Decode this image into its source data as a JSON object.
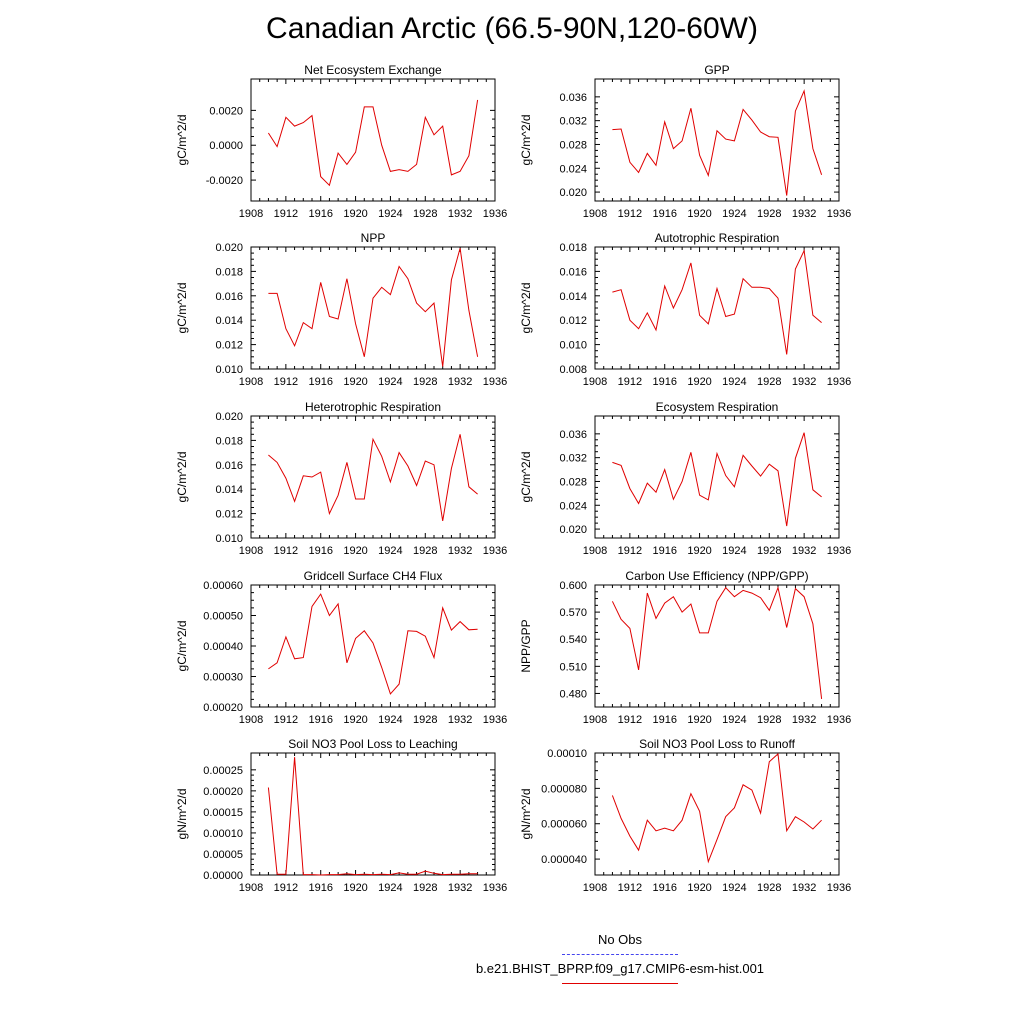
{
  "title": "Canadian Arctic (66.5-90N,120-60W)",
  "colors": {
    "series": "#e00000",
    "obs": "#4444ee",
    "axis": "#000000"
  },
  "legend": [
    {
      "label": "No Obs",
      "style": "dashed",
      "color": "#4444ee"
    },
    {
      "label": "b.e21.BHIST_BPRP.f09_g17.CMIP6-esm-hist.001",
      "style": "solid",
      "color": "#e00000"
    }
  ],
  "chart_data": [
    {
      "type": "line",
      "title": "Net Ecosystem Exchange",
      "ylabel": "gC/m^2/d",
      "xlim": [
        1908,
        1936
      ],
      "xticks": [
        "1908",
        "1912",
        "1916",
        "1920",
        "1924",
        "1928",
        "1932",
        "1936"
      ],
      "ylim": [
        -0.0032,
        0.0038
      ],
      "yticks": [
        "-0.0020",
        "0.0000",
        "0.0020"
      ],
      "ytick_values": [
        -0.002,
        0.0,
        0.002
      ],
      "x": [
        1910,
        1911,
        1912,
        1913,
        1914,
        1915,
        1916,
        1917,
        1918,
        1919,
        1920,
        1921,
        1922,
        1923,
        1924,
        1925,
        1926,
        1927,
        1928,
        1929,
        1930,
        1931,
        1932,
        1933,
        1934
      ],
      "series": [
        {
          "values": [
            0.0007,
            -8e-05,
            0.0016,
            0.0011,
            0.0013,
            0.0017,
            -0.0018,
            -0.0023,
            -0.00045,
            -0.0011,
            -0.0004,
            0.0022,
            0.0022,
            0.0,
            -0.0015,
            -0.0014,
            -0.0015,
            -0.0011,
            0.0016,
            0.0006,
            0.0011,
            -0.0017,
            -0.0015,
            -0.0006,
            0.0026
          ]
        }
      ]
    },
    {
      "type": "line",
      "title": "GPP",
      "ylabel": "gC/m^2/d",
      "xlim": [
        1908,
        1936
      ],
      "xticks": [
        "1908",
        "1912",
        "1916",
        "1920",
        "1924",
        "1928",
        "1932",
        "1936"
      ],
      "ylim": [
        0.0185,
        0.039
      ],
      "yticks": [
        "0.020",
        "0.024",
        "0.028",
        "0.032",
        "0.036"
      ],
      "ytick_values": [
        0.02,
        0.024,
        0.028,
        0.032,
        0.036
      ],
      "x": [
        1910,
        1911,
        1912,
        1913,
        1914,
        1915,
        1916,
        1917,
        1918,
        1919,
        1920,
        1921,
        1922,
        1923,
        1924,
        1925,
        1926,
        1927,
        1928,
        1929,
        1930,
        1931,
        1932,
        1933,
        1934
      ],
      "series": [
        {
          "values": [
            0.0305,
            0.0306,
            0.025,
            0.0233,
            0.0265,
            0.0245,
            0.0318,
            0.0273,
            0.0286,
            0.0341,
            0.0262,
            0.0228,
            0.0303,
            0.0289,
            0.0286,
            0.0339,
            0.0321,
            0.0301,
            0.0293,
            0.0292,
            0.0194,
            0.0336,
            0.037,
            0.0273,
            0.0229
          ]
        }
      ]
    },
    {
      "type": "line",
      "title": "NPP",
      "ylabel": "gC/m^2/d",
      "xlim": [
        1908,
        1936
      ],
      "xticks": [
        "1908",
        "1912",
        "1916",
        "1920",
        "1924",
        "1928",
        "1932",
        "1936"
      ],
      "ylim": [
        0.01,
        0.02
      ],
      "yticks": [
        "0.010",
        "0.012",
        "0.014",
        "0.016",
        "0.018",
        "0.020"
      ],
      "ytick_values": [
        0.01,
        0.012,
        0.014,
        0.016,
        0.018,
        0.02
      ],
      "x": [
        1910,
        1911,
        1912,
        1913,
        1914,
        1915,
        1916,
        1917,
        1918,
        1919,
        1920,
        1921,
        1922,
        1923,
        1924,
        1925,
        1926,
        1927,
        1928,
        1929,
        1930,
        1931,
        1932,
        1933,
        1934
      ],
      "series": [
        {
          "values": [
            0.0162,
            0.0162,
            0.0133,
            0.0119,
            0.0138,
            0.0133,
            0.0171,
            0.0143,
            0.0141,
            0.0174,
            0.0137,
            0.011,
            0.0158,
            0.0167,
            0.0161,
            0.0184,
            0.0174,
            0.0154,
            0.0147,
            0.0154,
            0.0102,
            0.0173,
            0.0199,
            0.0148,
            0.011
          ]
        }
      ]
    },
    {
      "type": "line",
      "title": "Autotrophic Respiration",
      "ylabel": "gC/m^2/d",
      "xlim": [
        1908,
        1936
      ],
      "xticks": [
        "1908",
        "1912",
        "1916",
        "1920",
        "1924",
        "1928",
        "1932",
        "1936"
      ],
      "ylim": [
        0.008,
        0.018
      ],
      "yticks": [
        "0.008",
        "0.010",
        "0.012",
        "0.014",
        "0.016",
        "0.018"
      ],
      "ytick_values": [
        0.008,
        0.01,
        0.012,
        0.014,
        0.016,
        0.018
      ],
      "x": [
        1910,
        1911,
        1912,
        1913,
        1914,
        1915,
        1916,
        1917,
        1918,
        1919,
        1920,
        1921,
        1922,
        1923,
        1924,
        1925,
        1926,
        1927,
        1928,
        1929,
        1930,
        1931,
        1932,
        1933,
        1934
      ],
      "series": [
        {
          "values": [
            0.0143,
            0.0145,
            0.012,
            0.0113,
            0.0126,
            0.0112,
            0.0148,
            0.013,
            0.0145,
            0.0167,
            0.0124,
            0.0117,
            0.0146,
            0.0123,
            0.0125,
            0.0154,
            0.0147,
            0.0147,
            0.0146,
            0.0138,
            0.0092,
            0.0162,
            0.0177,
            0.0124,
            0.0118
          ]
        }
      ]
    },
    {
      "type": "line",
      "title": "Heterotrophic Respiration",
      "ylabel": "gC/m^2/d",
      "xlim": [
        1908,
        1936
      ],
      "xticks": [
        "1908",
        "1912",
        "1916",
        "1920",
        "1924",
        "1928",
        "1932",
        "1936"
      ],
      "ylim": [
        0.01,
        0.02
      ],
      "yticks": [
        "0.010",
        "0.012",
        "0.014",
        "0.016",
        "0.018",
        "0.020"
      ],
      "ytick_values": [
        0.01,
        0.012,
        0.014,
        0.016,
        0.018,
        0.02
      ],
      "x": [
        1910,
        1911,
        1912,
        1913,
        1914,
        1915,
        1916,
        1917,
        1918,
        1919,
        1920,
        1921,
        1922,
        1923,
        1924,
        1925,
        1926,
        1927,
        1928,
        1929,
        1930,
        1931,
        1932,
        1933,
        1934
      ],
      "series": [
        {
          "values": [
            0.0168,
            0.0162,
            0.0149,
            0.013,
            0.0151,
            0.015,
            0.0154,
            0.012,
            0.0135,
            0.0162,
            0.0132,
            0.0132,
            0.0181,
            0.0167,
            0.0146,
            0.017,
            0.0159,
            0.0143,
            0.0163,
            0.016,
            0.0114,
            0.0157,
            0.0185,
            0.0142,
            0.0136
          ]
        }
      ]
    },
    {
      "type": "line",
      "title": "Ecosystem Respiration",
      "ylabel": "gC/m^2/d",
      "xlim": [
        1908,
        1936
      ],
      "xticks": [
        "1908",
        "1912",
        "1916",
        "1920",
        "1924",
        "1928",
        "1932",
        "1936"
      ],
      "ylim": [
        0.0185,
        0.039
      ],
      "yticks": [
        "0.020",
        "0.024",
        "0.028",
        "0.032",
        "0.036"
      ],
      "ytick_values": [
        0.02,
        0.024,
        0.028,
        0.032,
        0.036
      ],
      "x": [
        1910,
        1911,
        1912,
        1913,
        1914,
        1915,
        1916,
        1917,
        1918,
        1919,
        1920,
        1921,
        1922,
        1923,
        1924,
        1925,
        1926,
        1927,
        1928,
        1929,
        1930,
        1931,
        1932,
        1933,
        1934
      ],
      "series": [
        {
          "values": [
            0.0312,
            0.0307,
            0.0268,
            0.0243,
            0.0277,
            0.0262,
            0.03,
            0.025,
            0.028,
            0.0329,
            0.0257,
            0.0249,
            0.0327,
            0.029,
            0.0271,
            0.0324,
            0.0306,
            0.0289,
            0.0309,
            0.0298,
            0.0205,
            0.0319,
            0.0362,
            0.0266,
            0.0254
          ]
        }
      ]
    },
    {
      "type": "line",
      "title": "Gridcell Surface CH4 Flux",
      "ylabel": "gC/m^2/d",
      "xlim": [
        1908,
        1936
      ],
      "xticks": [
        "1908",
        "1912",
        "1916",
        "1920",
        "1924",
        "1928",
        "1932",
        "1936"
      ],
      "ylim": [
        0.0002,
        0.0006
      ],
      "yticks": [
        "0.00020",
        "0.00030",
        "0.00040",
        "0.00050",
        "0.00060"
      ],
      "ytick_values": [
        0.0002,
        0.0003,
        0.0004,
        0.0005,
        0.0006
      ],
      "x": [
        1910,
        1911,
        1912,
        1913,
        1914,
        1915,
        1916,
        1917,
        1918,
        1919,
        1920,
        1921,
        1922,
        1923,
        1924,
        1925,
        1926,
        1927,
        1928,
        1929,
        1930,
        1931,
        1932,
        1933,
        1934
      ],
      "series": [
        {
          "values": [
            0.000325,
            0.000345,
            0.00043,
            0.000358,
            0.000362,
            0.00053,
            0.00057,
            0.0005,
            0.000538,
            0.000345,
            0.000425,
            0.00045,
            0.00041,
            0.00033,
            0.000243,
            0.000275,
            0.00045,
            0.000448,
            0.000432,
            0.000362,
            0.000525,
            0.000452,
            0.00048,
            0.000453,
            0.000455
          ]
        }
      ]
    },
    {
      "type": "line",
      "title": "Carbon Use Efficiency (NPP/GPP)",
      "ylabel": "NPP/GPP",
      "xlim": [
        1908,
        1936
      ],
      "xticks": [
        "1908",
        "1912",
        "1916",
        "1920",
        "1924",
        "1928",
        "1932",
        "1936"
      ],
      "ylim": [
        0.465,
        0.6
      ],
      "yticks": [
        "0.480",
        "0.510",
        "0.540",
        "0.570",
        "0.600"
      ],
      "ytick_values": [
        0.48,
        0.51,
        0.54,
        0.57,
        0.6
      ],
      "x": [
        1910,
        1911,
        1912,
        1913,
        1914,
        1915,
        1916,
        1917,
        1918,
        1919,
        1920,
        1921,
        1922,
        1923,
        1924,
        1925,
        1926,
        1927,
        1928,
        1929,
        1930,
        1931,
        1932,
        1933,
        1934
      ],
      "series": [
        {
          "values": [
            0.582,
            0.562,
            0.552,
            0.506,
            0.591,
            0.563,
            0.58,
            0.587,
            0.57,
            0.579,
            0.547,
            0.547,
            0.582,
            0.597,
            0.587,
            0.594,
            0.591,
            0.586,
            0.572,
            0.597,
            0.553,
            0.596,
            0.587,
            0.557,
            0.474
          ]
        }
      ]
    },
    {
      "type": "line",
      "title": "Soil NO3 Pool Loss to Leaching",
      "ylabel": "gN/m^2/d",
      "xlim": [
        1908,
        1936
      ],
      "xticks": [
        "1908",
        "1912",
        "1916",
        "1920",
        "1924",
        "1928",
        "1932",
        "1936"
      ],
      "ylim": [
        0.0,
        0.00029
      ],
      "yticks": [
        "0.00000",
        "0.00005",
        "0.00010",
        "0.00015",
        "0.00020",
        "0.00025"
      ],
      "ytick_values": [
        0.0,
        5e-05,
        0.0001,
        0.00015,
        0.0002,
        0.00025
      ],
      "x": [
        1910,
        1911,
        1912,
        1913,
        1914,
        1915,
        1916,
        1917,
        1918,
        1919,
        1920,
        1921,
        1922,
        1923,
        1924,
        1925,
        1926,
        1927,
        1928,
        1929,
        1930,
        1931,
        1932,
        1933,
        1934
      ],
      "series": [
        {
          "values": [
            0.000208,
            2e-06,
            2e-06,
            0.00028,
            1e-06,
            1e-06,
            0.0,
            1e-06,
            1e-06,
            3e-06,
            1e-06,
            2e-06,
            1e-06,
            2e-06,
            1e-06,
            5e-06,
            2e-06,
            2e-06,
            9e-06,
            4e-06,
            1e-06,
            2e-06,
            2e-06,
            3e-06,
            3e-06
          ]
        }
      ]
    },
    {
      "type": "line",
      "title": "Soil NO3 Pool Loss to Runoff",
      "ylabel": "gN/m^2/d",
      "xlim": [
        1908,
        1936
      ],
      "xticks": [
        "1908",
        "1912",
        "1916",
        "1920",
        "1924",
        "1928",
        "1932",
        "1936"
      ],
      "ylim": [
        3.1e-05,
        0.0001
      ],
      "yticks": [
        "0.000040",
        "0.000060",
        "0.000080",
        "0.00010"
      ],
      "ytick_values": [
        4e-05,
        6e-05,
        8e-05,
        0.0001
      ],
      "x": [
        1910,
        1911,
        1912,
        1913,
        1914,
        1915,
        1916,
        1917,
        1918,
        1919,
        1920,
        1921,
        1922,
        1923,
        1924,
        1925,
        1926,
        1927,
        1928,
        1929,
        1930,
        1931,
        1932,
        1933,
        1934
      ],
      "series": [
        {
          "values": [
            7.6e-05,
            6.3e-05,
            5.3e-05,
            4.5e-05,
            6.2e-05,
            5.6e-05,
            5.75e-05,
            5.6e-05,
            6.2e-05,
            7.7e-05,
            6.7e-05,
            3.85e-05,
            5.1e-05,
            6.4e-05,
            6.9e-05,
            8.2e-05,
            7.9e-05,
            6.6e-05,
            9.5e-05,
            9.95e-05,
            5.6e-05,
            6.4e-05,
            6.1e-05,
            5.7e-05,
            6.2e-05
          ]
        }
      ]
    }
  ]
}
